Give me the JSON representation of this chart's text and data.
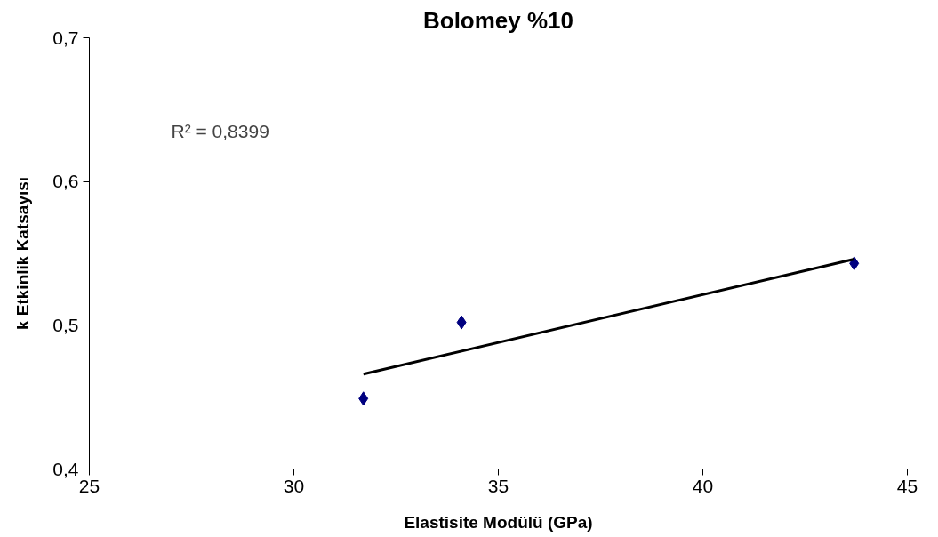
{
  "chart_data": {
    "type": "scatter",
    "title": "Bolomey %10",
    "xlabel": "Elastisite Modülü (GPa)",
    "ylabel": "k Etkinlik Katsayısı",
    "xlim": [
      25,
      45
    ],
    "xticks": [
      25,
      30,
      35,
      40,
      45
    ],
    "ylim": [
      0.4,
      0.7
    ],
    "yticks": [
      {
        "value": 0.4,
        "label": "0,4"
      },
      {
        "value": 0.5,
        "label": "0,5"
      },
      {
        "value": 0.6,
        "label": "0,6"
      },
      {
        "value": 0.7,
        "label": "0,7"
      }
    ],
    "grid": false,
    "marker": "diamond",
    "series": [
      {
        "color": "#000080",
        "x": [
          31.7,
          34.1,
          43.7
        ],
        "values": [
          0.449,
          0.502,
          0.543
        ]
      },
      {
        "type": "line",
        "color": "#000000",
        "x": [
          31.7,
          43.7
        ],
        "values": [
          0.466,
          0.546
        ],
        "marker": "none",
        "line_style": "solid"
      }
    ],
    "annotations": [
      "R² = 0,8399"
    ]
  }
}
